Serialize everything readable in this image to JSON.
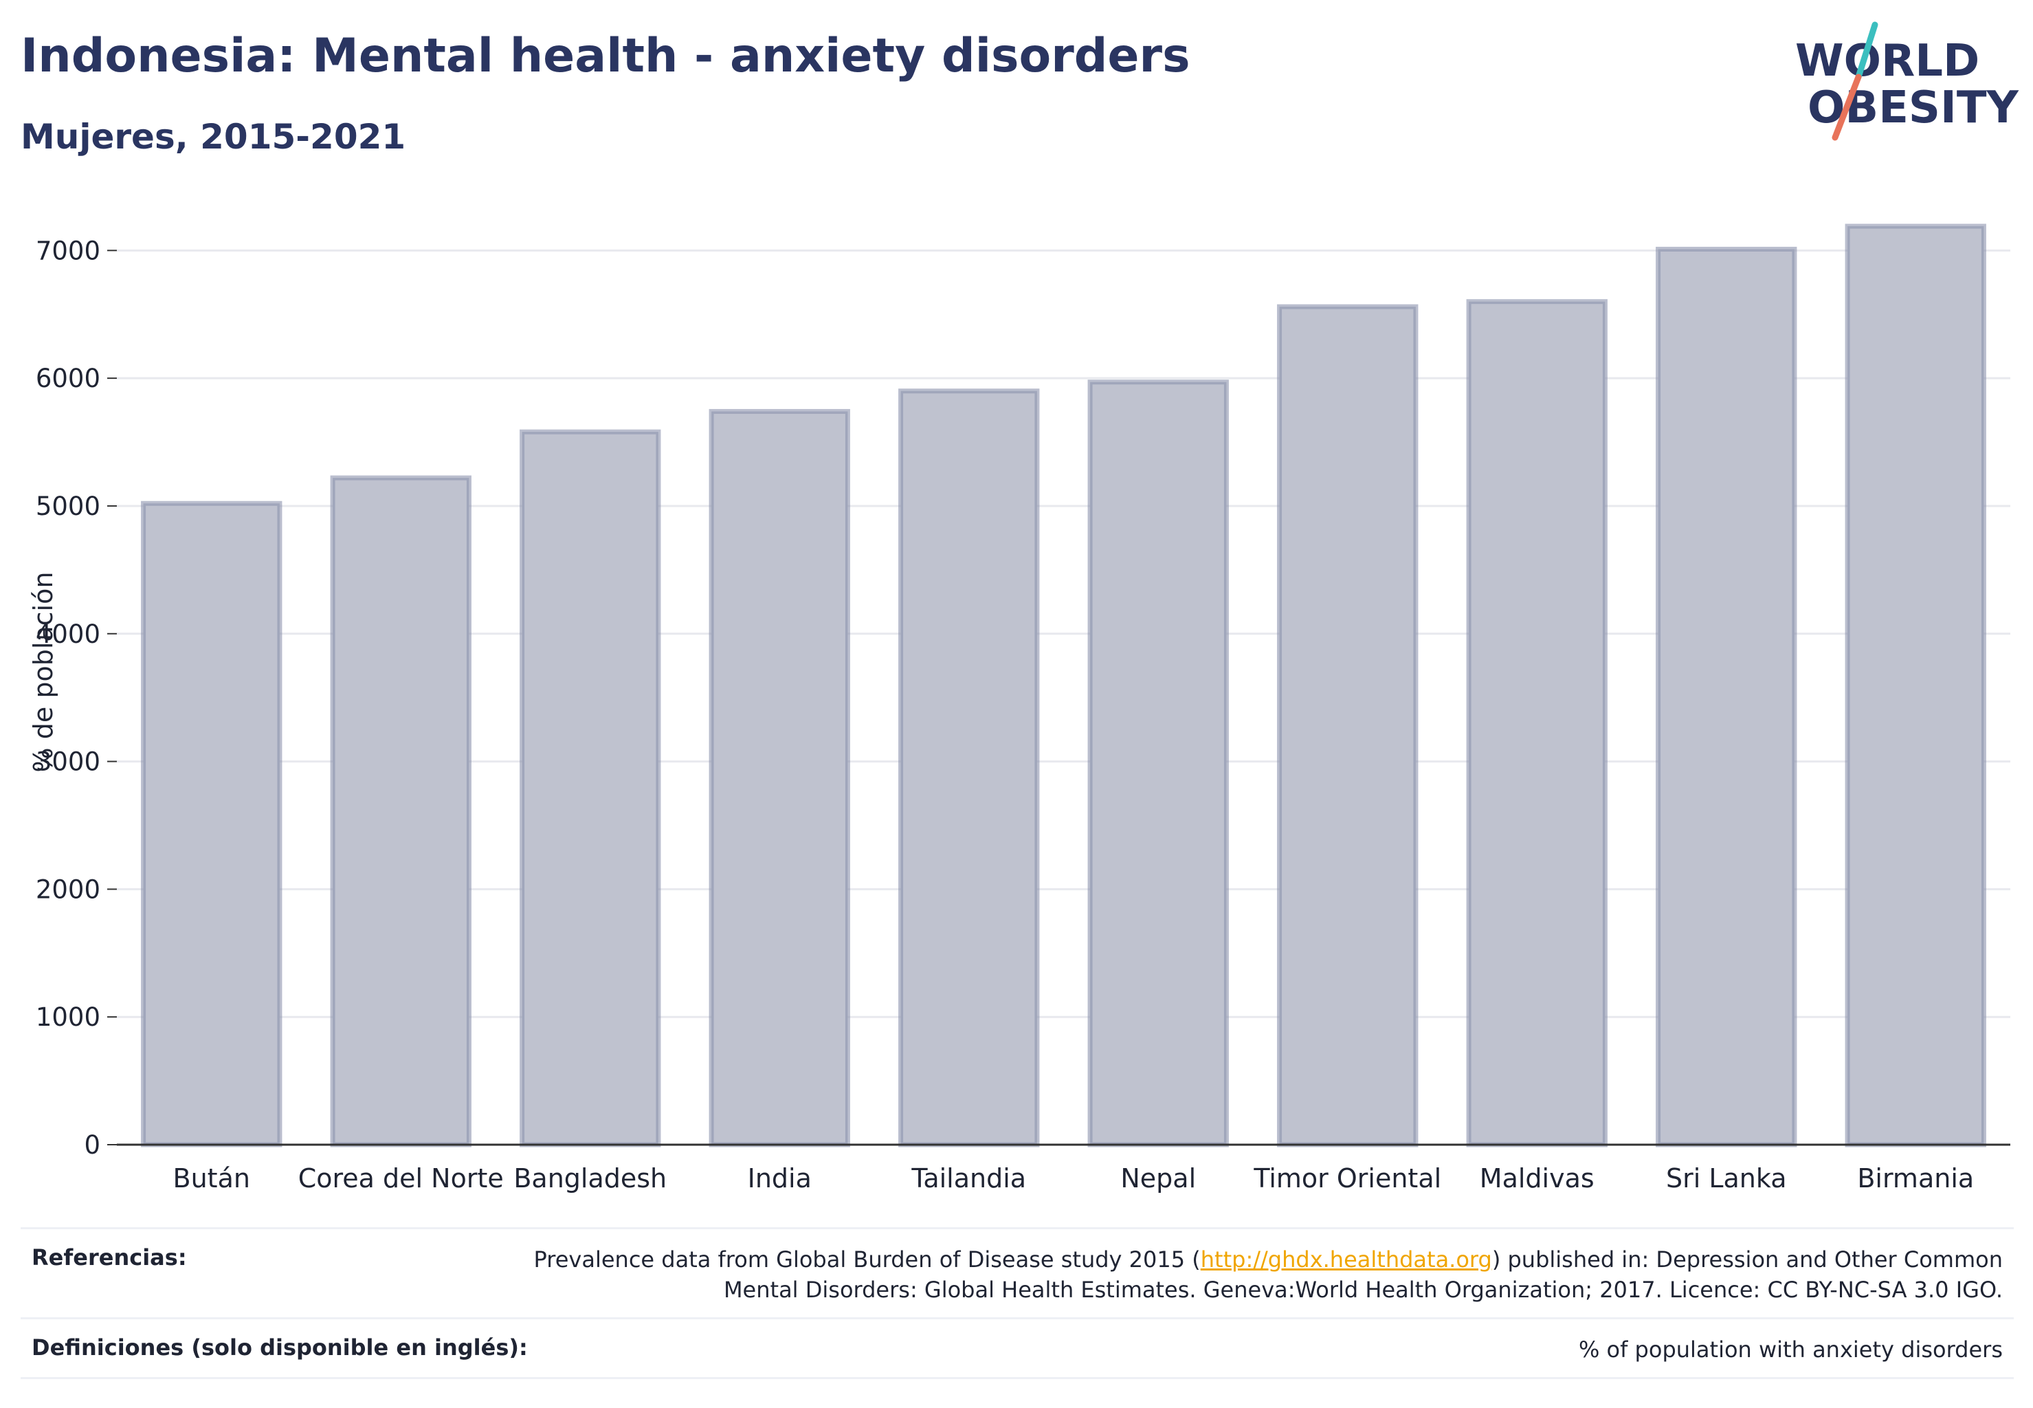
{
  "header": {
    "title": "Indonesia: Mental health - anxiety disorders",
    "subtitle": "Mujeres, 2015-2021"
  },
  "logo": {
    "line1": "WORLD",
    "line2": "OBESITY",
    "colors": {
      "text": "#2a3561",
      "slash_top": "#3bbfbf",
      "slash_bottom": "#e8735a"
    }
  },
  "chart_data": {
    "type": "bar",
    "title": "",
    "xlabel": "",
    "ylabel": "% de población",
    "categories": [
      "Bután",
      "Corea del Norte",
      "Bangladesh",
      "India",
      "Tailandia",
      "Nepal",
      "Timor Oriental",
      "Maldivas",
      "Sri Lanka",
      "Birmania"
    ],
    "values": [
      5020,
      5220,
      5580,
      5740,
      5900,
      5970,
      6560,
      6600,
      7010,
      7190
    ],
    "ylim": [
      0,
      7400
    ],
    "yticks": [
      0,
      1000,
      2000,
      3000,
      4000,
      5000,
      6000,
      7000
    ],
    "grid": true,
    "colors": {
      "bar_fill": "#bfc2cf",
      "bar_stroke": "#8c93ad",
      "grid": "#e8e9ee",
      "axis": "#333333"
    }
  },
  "footer": {
    "references_label": "Referencias:",
    "references_text_before": "Prevalence data from Global Burden of Disease study 2015 (",
    "references_link": "http://ghdx.healthdata.org",
    "references_text_after": ") published in: Depression and Other Common",
    "references_text_line2": "Mental Disorders: Global Health Estimates. Geneva:World Health Organization; 2017. Licence: CC BY-NC-SA 3.0 IGO.",
    "definitions_label": "Definiciones (solo disponible en inglés):",
    "definitions_text": "% of population with anxiety disorders"
  }
}
